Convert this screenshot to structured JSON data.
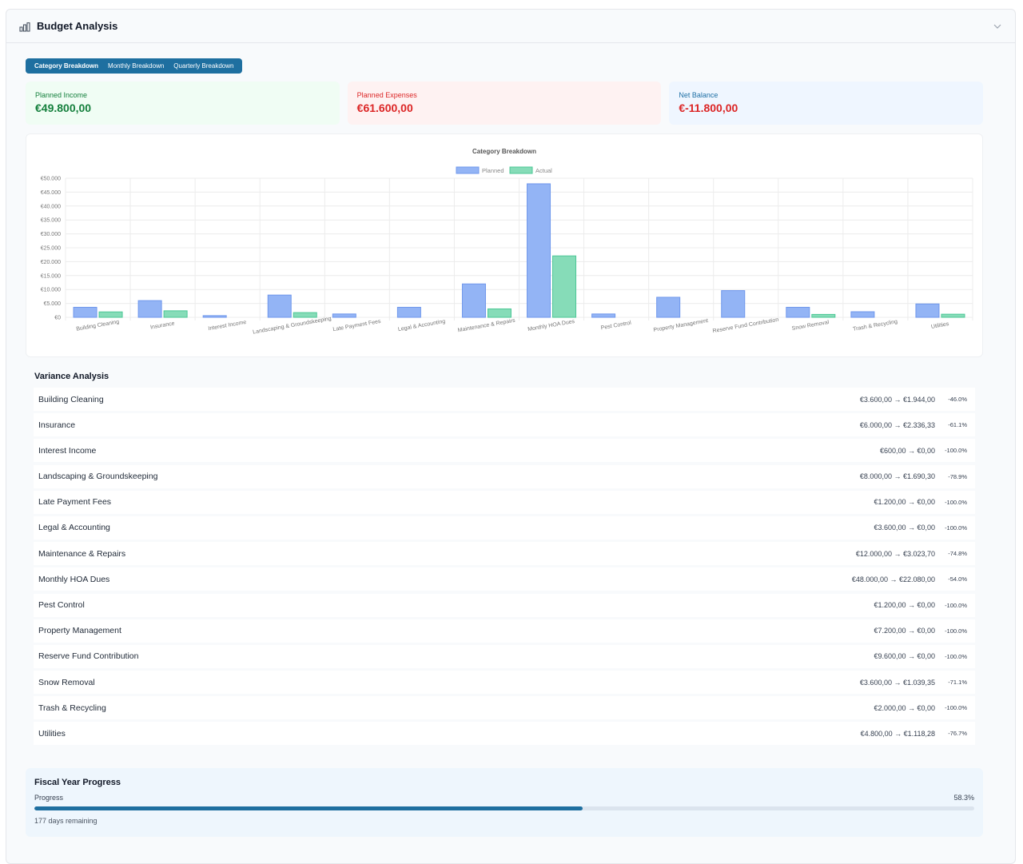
{
  "header": {
    "title": "Budget Analysis",
    "icon": "bar-chart-icon",
    "toggle_icon": "chevron-down-icon"
  },
  "tabs": [
    {
      "label": "Category Breakdown",
      "active": true
    },
    {
      "label": "Monthly Breakdown",
      "active": false
    },
    {
      "label": "Quarterly Breakdown",
      "active": false
    }
  ],
  "summary": {
    "income": {
      "label": "Planned Income",
      "value": "€49.800,00"
    },
    "expenses": {
      "label": "Planned Expenses",
      "value": "€61.600,00"
    },
    "net": {
      "label": "Net Balance",
      "value": "€-11.800,00"
    }
  },
  "colors": {
    "accent": "#1e6fa0",
    "planned": "#93b4f5",
    "actual": "#86dcb8",
    "positive": "#15803d",
    "negative": "#dc2626"
  },
  "chart_data": {
    "type": "bar",
    "title": "Category Breakdown",
    "legend": "top-center",
    "grid": true,
    "ylim": [
      0,
      50000
    ],
    "yticks": [
      "€50.000",
      "€45.000",
      "€40.000",
      "€35.000",
      "€30.000",
      "€25.000",
      "€20.000",
      "€15.000",
      "€10.000",
      "€5.000",
      "€0"
    ],
    "categories": [
      "Building Cleaning",
      "Insurance",
      "Interest Income",
      "Landscaping & Groundskeeping",
      "Late Payment Fees",
      "Legal & Accounting",
      "Maintenance & Repairs",
      "Monthly HOA Dues",
      "Pest Control",
      "Property Management",
      "Reserve Fund Contribution",
      "Snow Removal",
      "Trash & Recycling",
      "Utilities"
    ],
    "series": [
      {
        "name": "Planned",
        "values": [
          3600,
          6000,
          600,
          8000,
          1200,
          3600,
          12000,
          48000,
          1200,
          7200,
          9600,
          3600,
          2000,
          4800
        ]
      },
      {
        "name": "Actual",
        "values": [
          1944,
          2336.33,
          0,
          1690.3,
          0,
          0,
          3023.7,
          22080,
          0,
          0,
          0,
          1039.35,
          0,
          1118.28
        ]
      }
    ]
  },
  "variance": {
    "title": "Variance Analysis",
    "rows": [
      {
        "name": "Building Cleaning",
        "amount": "€3.600,00 → €1.944,00",
        "pct": "-46.0%"
      },
      {
        "name": "Insurance",
        "amount": "€6.000,00 → €2.336,33",
        "pct": "-61.1%"
      },
      {
        "name": "Interest Income",
        "amount": "€600,00 → €0,00",
        "pct": "-100.0%"
      },
      {
        "name": "Landscaping & Groundskeeping",
        "amount": "€8.000,00 → €1.690,30",
        "pct": "-78.9%"
      },
      {
        "name": "Late Payment Fees",
        "amount": "€1.200,00 → €0,00",
        "pct": "-100.0%"
      },
      {
        "name": "Legal & Accounting",
        "amount": "€3.600,00 → €0,00",
        "pct": "-100.0%"
      },
      {
        "name": "Maintenance & Repairs",
        "amount": "€12.000,00 → €3.023,70",
        "pct": "-74.8%"
      },
      {
        "name": "Monthly HOA Dues",
        "amount": "€48.000,00 → €22.080,00",
        "pct": "-54.0%"
      },
      {
        "name": "Pest Control",
        "amount": "€1.200,00 → €0,00",
        "pct": "-100.0%"
      },
      {
        "name": "Property Management",
        "amount": "€7.200,00 → €0,00",
        "pct": "-100.0%"
      },
      {
        "name": "Reserve Fund Contribution",
        "amount": "€9.600,00 → €0,00",
        "pct": "-100.0%"
      },
      {
        "name": "Snow Removal",
        "amount": "€3.600,00 → €1.039,35",
        "pct": "-71.1%"
      },
      {
        "name": "Trash & Recycling",
        "amount": "€2.000,00 → €0,00",
        "pct": "-100.0%"
      },
      {
        "name": "Utilities",
        "amount": "€4.800,00 → €1.118,28",
        "pct": "-76.7%"
      }
    ]
  },
  "fiscal": {
    "title": "Fiscal Year Progress",
    "progress_label": "Progress",
    "progress_value": "58.3%",
    "progress_fraction": 0.583,
    "days_remaining": "177 days remaining"
  }
}
